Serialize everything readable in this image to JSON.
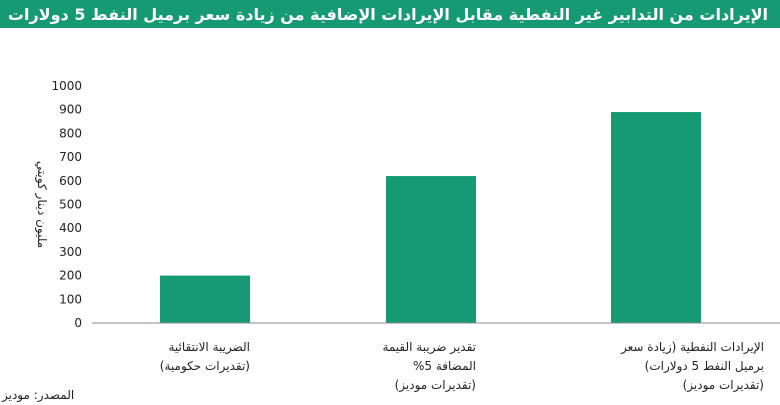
{
  "chart_data": {
    "type": "bar",
    "title": "الإيرادات من التدابير غير النفطية مقابل الإيرادات الإضافية من زيادة سعر برميل النفط 5 دولارات",
    "ylabel": "مليون دينار كويتي",
    "xlabel": "",
    "ylim": [
      0,
      1000
    ],
    "yticks": [
      0,
      100,
      200,
      300,
      400,
      500,
      600,
      700,
      800,
      900,
      1000
    ],
    "categories": [
      [
        "الضريبة الانتقائية",
        "(تقديرات حكومية)"
      ],
      [
        "تقدير ضريبة القيمة",
        "المضافة 5%",
        "(تقديرات موديز)"
      ],
      [
        "الإيرادات النفطية (زيادة سعر",
        "برميل النفط 5 دولارات)",
        "(تقديرات موديز)"
      ]
    ],
    "values": [
      200,
      620,
      890
    ],
    "grid": false,
    "bar_color": "#169a74",
    "title_bg_color": "#169a74"
  },
  "source": "المصدر: موديز"
}
